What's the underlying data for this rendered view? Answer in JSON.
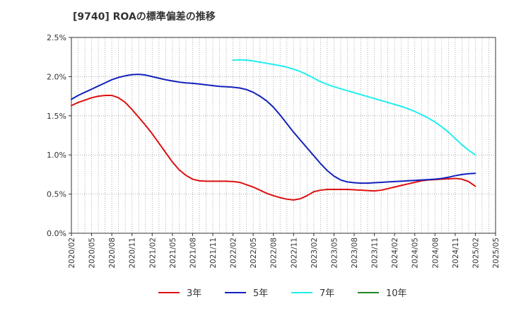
{
  "chart_data": {
    "type": "line",
    "title": "[9740]  ROAの標準偏差の推移",
    "xlabel": "",
    "ylabel": "",
    "y_ticks": [
      "0.0%",
      "0.5%",
      "1.0%",
      "1.5%",
      "2.0%",
      "2.5%"
    ],
    "ylim": [
      0,
      2.5
    ],
    "x_ticks": [
      "2020/02",
      "2020/05",
      "2020/08",
      "2020/11",
      "2021/02",
      "2021/05",
      "2021/08",
      "2021/11",
      "2022/02",
      "2022/05",
      "2022/08",
      "2022/11",
      "2023/02",
      "2023/05",
      "2023/08",
      "2023/11",
      "2024/02",
      "2024/05",
      "2024/08",
      "2024/11",
      "2025/02",
      "2025/05"
    ],
    "grid": true,
    "legend_position": "bottom",
    "series": [
      {
        "name": "3年",
        "color": "#dd1111",
        "points": [
          [
            "2020/02",
            1.63
          ],
          [
            "2020/03",
            1.67
          ],
          [
            "2020/04",
            1.7
          ],
          [
            "2020/05",
            1.73
          ],
          [
            "2020/06",
            1.75
          ],
          [
            "2020/07",
            1.76
          ],
          [
            "2020/08",
            1.76
          ],
          [
            "2020/09",
            1.73
          ],
          [
            "2020/10",
            1.67
          ],
          [
            "2020/11",
            1.58
          ],
          [
            "2020/12",
            1.48
          ],
          [
            "2021/01",
            1.38
          ],
          [
            "2021/02",
            1.27
          ],
          [
            "2021/03",
            1.15
          ],
          [
            "2021/04",
            1.03
          ],
          [
            "2021/05",
            0.91
          ],
          [
            "2021/06",
            0.81
          ],
          [
            "2021/07",
            0.74
          ],
          [
            "2021/08",
            0.69
          ],
          [
            "2021/09",
            0.67
          ],
          [
            "2021/10",
            0.665
          ],
          [
            "2021/11",
            0.665
          ],
          [
            "2021/12",
            0.665
          ],
          [
            "2022/01",
            0.665
          ],
          [
            "2022/02",
            0.66
          ],
          [
            "2022/03",
            0.65
          ],
          [
            "2022/04",
            0.62
          ],
          [
            "2022/05",
            0.59
          ],
          [
            "2022/06",
            0.55
          ],
          [
            "2022/07",
            0.51
          ],
          [
            "2022/08",
            0.48
          ],
          [
            "2022/09",
            0.455
          ],
          [
            "2022/10",
            0.435
          ],
          [
            "2022/11",
            0.425
          ],
          [
            "2022/12",
            0.44
          ],
          [
            "2023/01",
            0.48
          ],
          [
            "2023/02",
            0.53
          ],
          [
            "2023/03",
            0.55
          ],
          [
            "2023/04",
            0.56
          ],
          [
            "2023/05",
            0.56
          ],
          [
            "2023/06",
            0.56
          ],
          [
            "2023/07",
            0.56
          ],
          [
            "2023/08",
            0.555
          ],
          [
            "2023/09",
            0.55
          ],
          [
            "2023/10",
            0.545
          ],
          [
            "2023/11",
            0.54
          ],
          [
            "2023/12",
            0.55
          ],
          [
            "2024/01",
            0.57
          ],
          [
            "2024/02",
            0.59
          ],
          [
            "2024/03",
            0.61
          ],
          [
            "2024/04",
            0.63
          ],
          [
            "2024/05",
            0.65
          ],
          [
            "2024/06",
            0.67
          ],
          [
            "2024/07",
            0.68
          ],
          [
            "2024/08",
            0.685
          ],
          [
            "2024/09",
            0.69
          ],
          [
            "2024/10",
            0.695
          ],
          [
            "2024/11",
            0.7
          ],
          [
            "2024/12",
            0.69
          ],
          [
            "2025/01",
            0.66
          ],
          [
            "2025/02",
            0.6
          ]
        ]
      },
      {
        "name": "5年",
        "color": "#1122bb",
        "points": [
          [
            "2020/02",
            1.71
          ],
          [
            "2020/03",
            1.76
          ],
          [
            "2020/04",
            1.8
          ],
          [
            "2020/05",
            1.84
          ],
          [
            "2020/06",
            1.88
          ],
          [
            "2020/07",
            1.92
          ],
          [
            "2020/08",
            1.96
          ],
          [
            "2020/09",
            1.99
          ],
          [
            "2020/10",
            2.01
          ],
          [
            "2020/11",
            2.025
          ],
          [
            "2020/12",
            2.03
          ],
          [
            "2021/01",
            2.02
          ],
          [
            "2021/02",
            2.0
          ],
          [
            "2021/03",
            1.98
          ],
          [
            "2021/04",
            1.96
          ],
          [
            "2021/05",
            1.945
          ],
          [
            "2021/06",
            1.93
          ],
          [
            "2021/07",
            1.92
          ],
          [
            "2021/08",
            1.915
          ],
          [
            "2021/09",
            1.905
          ],
          [
            "2021/10",
            1.895
          ],
          [
            "2021/11",
            1.885
          ],
          [
            "2021/12",
            1.875
          ],
          [
            "2022/01",
            1.87
          ],
          [
            "2022/02",
            1.865
          ],
          [
            "2022/03",
            1.855
          ],
          [
            "2022/04",
            1.835
          ],
          [
            "2022/05",
            1.8
          ],
          [
            "2022/06",
            1.75
          ],
          [
            "2022/07",
            1.69
          ],
          [
            "2022/08",
            1.61
          ],
          [
            "2022/09",
            1.51
          ],
          [
            "2022/10",
            1.4
          ],
          [
            "2022/11",
            1.29
          ],
          [
            "2022/12",
            1.19
          ],
          [
            "2023/01",
            1.09
          ],
          [
            "2023/02",
            0.99
          ],
          [
            "2023/03",
            0.89
          ],
          [
            "2023/04",
            0.8
          ],
          [
            "2023/05",
            0.73
          ],
          [
            "2023/06",
            0.68
          ],
          [
            "2023/07",
            0.655
          ],
          [
            "2023/08",
            0.645
          ],
          [
            "2023/09",
            0.64
          ],
          [
            "2023/10",
            0.64
          ],
          [
            "2023/11",
            0.645
          ],
          [
            "2023/12",
            0.65
          ],
          [
            "2024/01",
            0.655
          ],
          [
            "2024/02",
            0.66
          ],
          [
            "2024/03",
            0.665
          ],
          [
            "2024/04",
            0.67
          ],
          [
            "2024/05",
            0.675
          ],
          [
            "2024/06",
            0.68
          ],
          [
            "2024/07",
            0.685
          ],
          [
            "2024/08",
            0.69
          ],
          [
            "2024/09",
            0.7
          ],
          [
            "2024/10",
            0.715
          ],
          [
            "2024/11",
            0.735
          ],
          [
            "2024/12",
            0.75
          ],
          [
            "2025/01",
            0.76
          ],
          [
            "2025/02",
            0.765
          ]
        ]
      },
      {
        "name": "7年",
        "color": "#22eeee",
        "points": [
          [
            "2022/02",
            2.21
          ],
          [
            "2022/03",
            2.215
          ],
          [
            "2022/04",
            2.21
          ],
          [
            "2022/05",
            2.2
          ],
          [
            "2022/06",
            2.185
          ],
          [
            "2022/07",
            2.17
          ],
          [
            "2022/08",
            2.155
          ],
          [
            "2022/09",
            2.14
          ],
          [
            "2022/10",
            2.12
          ],
          [
            "2022/11",
            2.095
          ],
          [
            "2022/12",
            2.065
          ],
          [
            "2023/01",
            2.025
          ],
          [
            "2023/02",
            1.98
          ],
          [
            "2023/03",
            1.935
          ],
          [
            "2023/04",
            1.9
          ],
          [
            "2023/05",
            1.87
          ],
          [
            "2023/06",
            1.845
          ],
          [
            "2023/07",
            1.82
          ],
          [
            "2023/08",
            1.795
          ],
          [
            "2023/09",
            1.77
          ],
          [
            "2023/10",
            1.745
          ],
          [
            "2023/11",
            1.72
          ],
          [
            "2023/12",
            1.695
          ],
          [
            "2024/01",
            1.67
          ],
          [
            "2024/02",
            1.645
          ],
          [
            "2024/03",
            1.62
          ],
          [
            "2024/04",
            1.59
          ],
          [
            "2024/05",
            1.555
          ],
          [
            "2024/06",
            1.515
          ],
          [
            "2024/07",
            1.47
          ],
          [
            "2024/08",
            1.42
          ],
          [
            "2024/09",
            1.36
          ],
          [
            "2024/10",
            1.29
          ],
          [
            "2024/11",
            1.21
          ],
          [
            "2024/12",
            1.13
          ],
          [
            "2025/01",
            1.06
          ],
          [
            "2025/02",
            1.0
          ]
        ]
      },
      {
        "name": "10年",
        "color": "#228822",
        "points": []
      }
    ]
  }
}
